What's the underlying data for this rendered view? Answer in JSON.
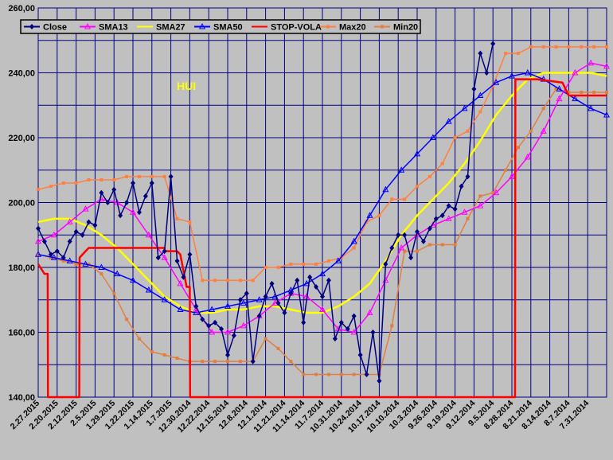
{
  "chart_data": {
    "type": "line",
    "title": "",
    "xlabel": "",
    "ylabel": "",
    "annotation": "HUI",
    "ylim": [
      140,
      260
    ],
    "yticks": [
      "140,00",
      "160,00",
      "180,00",
      "200,00",
      "220,00",
      "240,00",
      "260,00"
    ],
    "x_reversed": true,
    "grid": true,
    "legend_position": "top-left",
    "x_tick_labels": [
      "2.27.2015",
      "2.20.2015",
      "2.12.2015",
      "2.5.2015",
      "1.29.2015",
      "1.22.2015",
      "1.14.2015",
      "1.7.2015",
      "12.30.2014",
      "12.22.2014",
      "12.15.2014",
      "12.8.2014",
      "12.1.2014",
      "11.21.2014",
      "11.14.2014",
      "11.7.2014",
      "10.31.2014",
      "10.24.2014",
      "10.17.2014",
      "10.10.2014",
      "10.3.2014",
      "9.26.2014",
      "9.19.2014",
      "9.12.2014",
      "9.5.2014",
      "8.28.2014",
      "8.21.2014",
      "8.14.2014",
      "8.7.2014",
      "7.31.2014"
    ],
    "x_unit": "trading days before 2.27.2015",
    "series": [
      {
        "name": "Close",
        "color": "#000080",
        "marker": "diamond",
        "x": [
          0,
          2,
          4,
          6,
          8,
          10,
          12,
          14,
          16,
          18,
          20,
          22,
          24,
          26,
          28,
          30,
          32,
          34,
          36,
          38,
          40,
          42,
          44,
          46,
          48,
          50,
          52,
          54,
          56,
          58,
          60,
          62,
          64,
          66,
          68,
          70,
          72,
          74,
          76,
          78,
          80,
          82,
          84,
          86,
          88,
          90,
          92,
          94,
          96,
          98,
          100,
          102,
          104,
          106,
          108,
          110,
          112,
          114,
          116,
          118,
          120,
          122,
          124,
          126,
          128,
          130,
          132,
          134,
          136,
          138,
          140,
          142,
          144
        ],
        "values": [
          192,
          188,
          184,
          185,
          183,
          188,
          191,
          190,
          194,
          193,
          203,
          200,
          204,
          196,
          200,
          206,
          197,
          202,
          206,
          183,
          185,
          208,
          182,
          177,
          184,
          168,
          164,
          162,
          163,
          161,
          153,
          159,
          170,
          172,
          151,
          165,
          171,
          175,
          169,
          166,
          172,
          176,
          163,
          177,
          174,
          171,
          176,
          158,
          163,
          161,
          165,
          153,
          147,
          160,
          145,
          181,
          186,
          190,
          190,
          183,
          191,
          188,
          192,
          195,
          196,
          199,
          198,
          205,
          208,
          235,
          246,
          240,
          249
        ]
      },
      {
        "name": "SMA13",
        "color": "#ff00ff",
        "marker": "triangle",
        "x": [
          0,
          5,
          10,
          15,
          20,
          25,
          30,
          35,
          40,
          45,
          50,
          55,
          60,
          65,
          70,
          75,
          80,
          85,
          90,
          95,
          100,
          105,
          110,
          115,
          120,
          125,
          130,
          135,
          140,
          145,
          150,
          155,
          160,
          165,
          170,
          175,
          180
        ],
        "values": [
          188,
          190,
          194,
          198,
          201,
          200,
          197,
          190,
          183,
          175,
          167,
          160,
          160,
          162,
          165,
          169,
          172,
          171,
          167,
          161,
          160,
          166,
          176,
          186,
          190,
          193,
          195,
          197,
          199,
          203,
          208,
          214,
          222,
          232,
          240,
          243,
          242
        ]
      },
      {
        "name": "SMA27",
        "color": "#ffff00",
        "marker": "none",
        "x": [
          0,
          5,
          10,
          15,
          20,
          25,
          30,
          35,
          40,
          45,
          50,
          55,
          60,
          65,
          70,
          75,
          80,
          85,
          90,
          95,
          100,
          105,
          110,
          115,
          120,
          125,
          130,
          135,
          140,
          145,
          150,
          155,
          160,
          165,
          170,
          175,
          180
        ],
        "values": [
          194,
          195,
          195,
          193,
          190,
          186,
          181,
          176,
          171,
          168,
          166,
          166,
          167,
          167,
          168,
          168,
          167,
          166,
          166,
          168,
          171,
          175,
          182,
          190,
          196,
          201,
          206,
          212,
          219,
          227,
          233,
          238,
          240,
          240,
          240,
          240,
          239
        ]
      },
      {
        "name": "SMA50",
        "color": "#0000ff",
        "marker": "triangle",
        "x": [
          0,
          5,
          10,
          15,
          20,
          25,
          30,
          35,
          40,
          45,
          50,
          55,
          60,
          65,
          70,
          75,
          80,
          85,
          90,
          95,
          100,
          105,
          110,
          115,
          120,
          125,
          130,
          135,
          140,
          145,
          150,
          155,
          160,
          165,
          170,
          175,
          180
        ],
        "values": [
          184,
          183,
          182,
          181,
          180,
          178,
          176,
          173,
          170,
          167,
          166,
          167,
          168,
          169,
          170,
          171,
          173,
          175,
          178,
          182,
          188,
          196,
          204,
          210,
          215,
          220,
          225,
          229,
          233,
          237,
          239,
          240,
          238,
          235,
          232,
          229,
          227
        ]
      },
      {
        "name": "STOP-VOLA",
        "color": "#ff0000",
        "marker": "none",
        "x": [
          0,
          2,
          3,
          3.1,
          13,
          13.1,
          15,
          16,
          17,
          17.1,
          40,
          40.1,
          44,
          45,
          47,
          47.1,
          48,
          48.1,
          151,
          151.1,
          152,
          156,
          158,
          166,
          168,
          176,
          180
        ],
        "values": [
          181,
          178,
          178,
          140,
          140,
          183,
          185,
          186,
          186,
          186,
          186,
          185,
          185,
          184,
          174,
          174,
          174,
          140,
          140,
          238,
          238,
          238,
          238,
          237,
          233,
          233,
          233
        ]
      },
      {
        "name": "Max20",
        "color": "#ff8040",
        "marker": "square",
        "x": [
          0,
          4,
          8,
          12,
          16,
          20,
          24,
          28,
          32,
          36,
          40,
          44,
          48,
          52,
          56,
          60,
          64,
          68,
          72,
          76,
          80,
          84,
          88,
          92,
          96,
          100,
          104,
          108,
          112,
          116,
          120,
          124,
          128,
          132,
          136,
          140,
          144,
          148,
          152,
          156,
          160,
          164,
          168,
          172,
          176,
          180
        ],
        "values": [
          204,
          205,
          206,
          206,
          207,
          207,
          207,
          208,
          208,
          208,
          208,
          195,
          194,
          176,
          176,
          176,
          176,
          176,
          180,
          180,
          181,
          181,
          181,
          182,
          183,
          186,
          194,
          196,
          201,
          201,
          205,
          208,
          212,
          220,
          222,
          228,
          236,
          246,
          246,
          248,
          248,
          248,
          248,
          248,
          248,
          248
        ]
      },
      {
        "name": "Min20",
        "color": "#e08040",
        "marker": "square",
        "x": [
          0,
          4,
          8,
          12,
          16,
          20,
          24,
          28,
          32,
          36,
          40,
          44,
          48,
          52,
          56,
          60,
          64,
          68,
          72,
          76,
          80,
          84,
          88,
          92,
          96,
          100,
          104,
          108,
          112,
          116,
          120,
          124,
          128,
          132,
          136,
          140,
          144,
          148,
          152,
          156,
          160,
          164,
          168,
          172,
          176,
          180
        ],
        "values": [
          184,
          183,
          182,
          181,
          181,
          178,
          172,
          164,
          158,
          154,
          153,
          152,
          151,
          151,
          151,
          151,
          151,
          151,
          158,
          155,
          151,
          147,
          147,
          147,
          147,
          147,
          147,
          147,
          162,
          185,
          185,
          187,
          187,
          187,
          195,
          202,
          203,
          210,
          217,
          222,
          229,
          235,
          234,
          234,
          234,
          234
        ]
      }
    ]
  }
}
